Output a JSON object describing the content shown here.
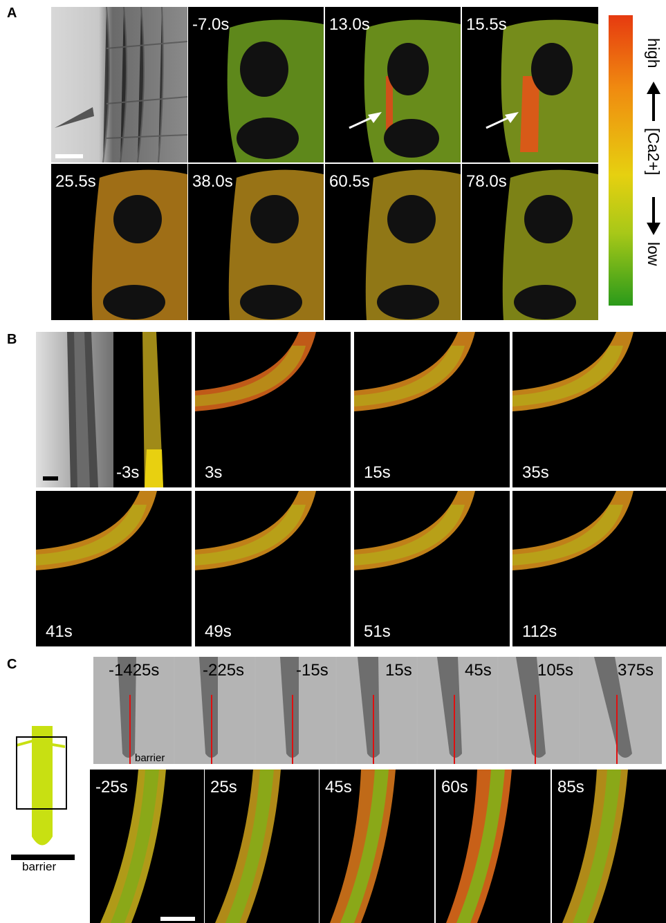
{
  "panels": {
    "a": {
      "label": "A",
      "times": [
        "-7.0s",
        "13.0s",
        "15.5s",
        "25.5s",
        "38.0s",
        "60.5s",
        "78.0s"
      ]
    },
    "b": {
      "label": "B",
      "times": [
        "-3s",
        "3s",
        "15s",
        "35s",
        "41s",
        "49s",
        "51s",
        "112s"
      ]
    },
    "c": {
      "label": "C",
      "top_times": [
        "-1425s",
        "-225s",
        "-15s",
        "15s",
        "45s",
        "105s",
        "375s"
      ],
      "bottom_times": [
        "-25s",
        "25s",
        "45s",
        "60s",
        "85s"
      ],
      "barrier_label": "barrier",
      "schematic_barrier_label": "barrier"
    }
  },
  "colorbar": {
    "high_label": "high",
    "low_label": "low",
    "ion_label": "[Ca2+]",
    "colors": [
      "#e63a10",
      "#f08a10",
      "#e6d010",
      "#a8c818",
      "#2a9a1a"
    ]
  }
}
